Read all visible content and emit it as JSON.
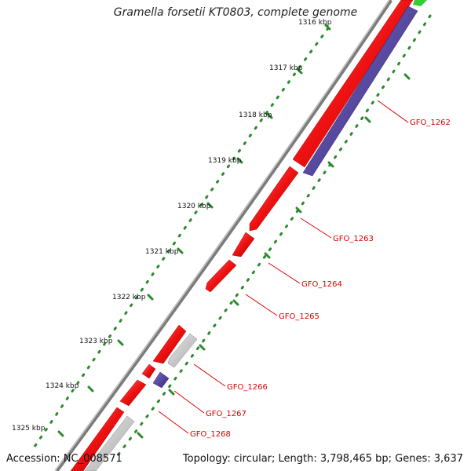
{
  "title": "Gramella forsetii KT0803, complete genome",
  "accession": "Accession: NC_008571",
  "summary": "Topology: circular; Length: 3,798,465 bp; Genes: 3,637",
  "tick_labels": [
    "1316 kbp",
    "1317 kbp",
    "1318 kbp",
    "1319 kbp",
    "1320 kbp",
    "1321 kbp",
    "1322 kbp",
    "1323 kbp",
    "1324 kbp",
    "1325 kbp"
  ],
  "gene_labels": [
    "GFO_1262",
    "GFO_1263",
    "GFO_1264",
    "GFO_1265",
    "GFO_1266",
    "GFO_1267",
    "GFO_1268"
  ],
  "colors": {
    "backbone": "#8c8c8c",
    "forward_cds": "#ee1111",
    "reverse_cds": "#4a3a9a",
    "other_gene": "#bdbdbd",
    "ticks": "#2a8a2a",
    "label_lines": "#e00000",
    "rna": "#33cc33"
  }
}
